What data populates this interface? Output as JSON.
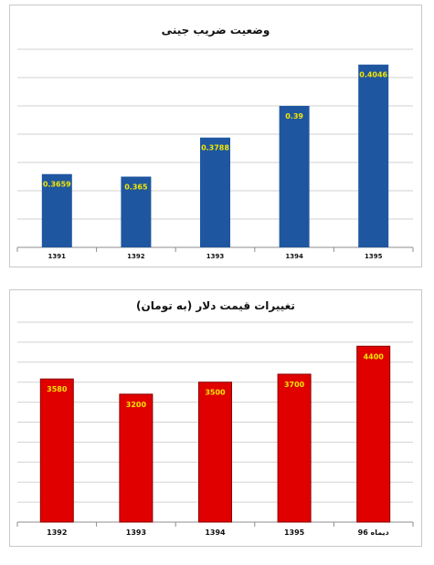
{
  "chart_data": [
    {
      "type": "bar",
      "title": "وضعیت ضریب جینی",
      "categories": [
        "1391",
        "1392",
        "1393",
        "1394",
        "1395"
      ],
      "values": [
        0.3659,
        0.365,
        0.3788,
        0.39,
        0.4046
      ],
      "labels": [
        "0.3659",
        "0.365",
        "0.3788",
        "0.39",
        "0.4046"
      ],
      "xlabel": "",
      "ylabel": "",
      "ylim": [
        0.34,
        0.41
      ],
      "grid": true,
      "bar_color": "#1f56a0",
      "label_color": "#f3e600"
    },
    {
      "type": "bar",
      "title": "تغییرات قیمت دلار (به تومان)",
      "categories": [
        "1392",
        "1393",
        "1394",
        "1395",
        "دیماه 96"
      ],
      "values": [
        3580,
        3200,
        3500,
        3700,
        4400
      ],
      "labels": [
        "3580",
        "3200",
        "3500",
        "3700",
        "4400"
      ],
      "xlabel": "",
      "ylabel": "",
      "ylim": [
        0,
        5000
      ],
      "grid": true,
      "bar_color": "#e00000",
      "label_color": "#f3e600"
    }
  ]
}
